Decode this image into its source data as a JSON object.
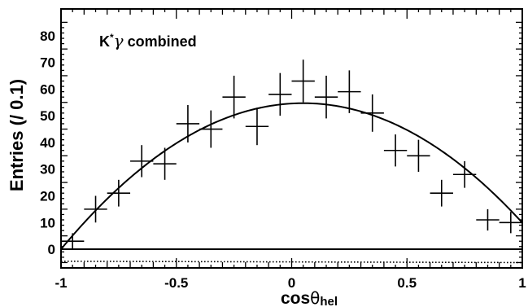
{
  "chart_data": {
    "type": "scatter",
    "annotation": {
      "prefix": "K",
      "superscript": "*",
      "greek": "γ",
      "suffix": " combined"
    },
    "xlabel": {
      "main": "cos",
      "greek": "θ",
      "subscript": "hel"
    },
    "ylabel": "Entries (/ 0.1)",
    "xlim": [
      -1,
      1
    ],
    "ylim": [
      -7,
      90
    ],
    "x_ticks": [
      -1,
      -0.5,
      0,
      0.5,
      1
    ],
    "x_tick_labels": [
      "-1",
      "-0.5",
      "0",
      "0.5",
      "1"
    ],
    "y_ticks": [
      0,
      10,
      20,
      30,
      40,
      50,
      60,
      70,
      80
    ],
    "y_tick_labels": [
      "0",
      "10",
      "20",
      "30",
      "40",
      "50",
      "60",
      "70",
      "80"
    ],
    "grid": false,
    "series": [
      {
        "style": "data-with-errors",
        "bin_halfwidth": 0.05,
        "points": [
          {
            "x": -0.95,
            "y": 3,
            "err": 3
          },
          {
            "x": -0.85,
            "y": 15,
            "err": 5
          },
          {
            "x": -0.75,
            "y": 21,
            "err": 5
          },
          {
            "x": -0.65,
            "y": 33,
            "err": 6
          },
          {
            "x": -0.55,
            "y": 32,
            "err": 6
          },
          {
            "x": -0.45,
            "y": 47,
            "err": 7
          },
          {
            "x": -0.35,
            "y": 45,
            "err": 7
          },
          {
            "x": -0.25,
            "y": 57,
            "err": 8
          },
          {
            "x": -0.15,
            "y": 46,
            "err": 7
          },
          {
            "x": -0.05,
            "y": 58,
            "err": 8
          },
          {
            "x": 0.05,
            "y": 63,
            "err": 8
          },
          {
            "x": 0.15,
            "y": 57,
            "err": 8
          },
          {
            "x": 0.25,
            "y": 59,
            "err": 8
          },
          {
            "x": 0.35,
            "y": 51,
            "err": 7
          },
          {
            "x": 0.45,
            "y": 37,
            "err": 6
          },
          {
            "x": 0.55,
            "y": 35,
            "err": 6
          },
          {
            "x": 0.65,
            "y": 21,
            "err": 5
          },
          {
            "x": 0.75,
            "y": 28,
            "err": 5
          },
          {
            "x": 0.85,
            "y": 11,
            "err": 4
          },
          {
            "x": 0.95,
            "y": 10,
            "err": 4
          }
        ]
      },
      {
        "style": "fit-curve",
        "x": [
          -1,
          -0.9,
          -0.8,
          -0.7,
          -0.6,
          -0.5,
          -0.4,
          -0.3,
          -0.2,
          -0.1,
          0,
          0.05,
          0.1,
          0.2,
          0.3,
          0.4,
          0.5,
          0.6,
          0.7,
          0.8,
          0.9,
          1
        ],
        "y": [
          0,
          10.4,
          19.9,
          28.3,
          35.9,
          42.0,
          47.0,
          50.8,
          53.2,
          54.5,
          54.7,
          54.7,
          54.5,
          53.2,
          50.8,
          47.0,
          42.0,
          35.9,
          28.3,
          19.9,
          10.4,
          0
        ]
      },
      {
        "style": "background-solid",
        "x": [
          -1,
          1
        ],
        "y": [
          0,
          0
        ]
      },
      {
        "style": "background-dotted",
        "x": [
          -1,
          1
        ],
        "y": [
          -4.5,
          -5.0
        ]
      }
    ]
  }
}
